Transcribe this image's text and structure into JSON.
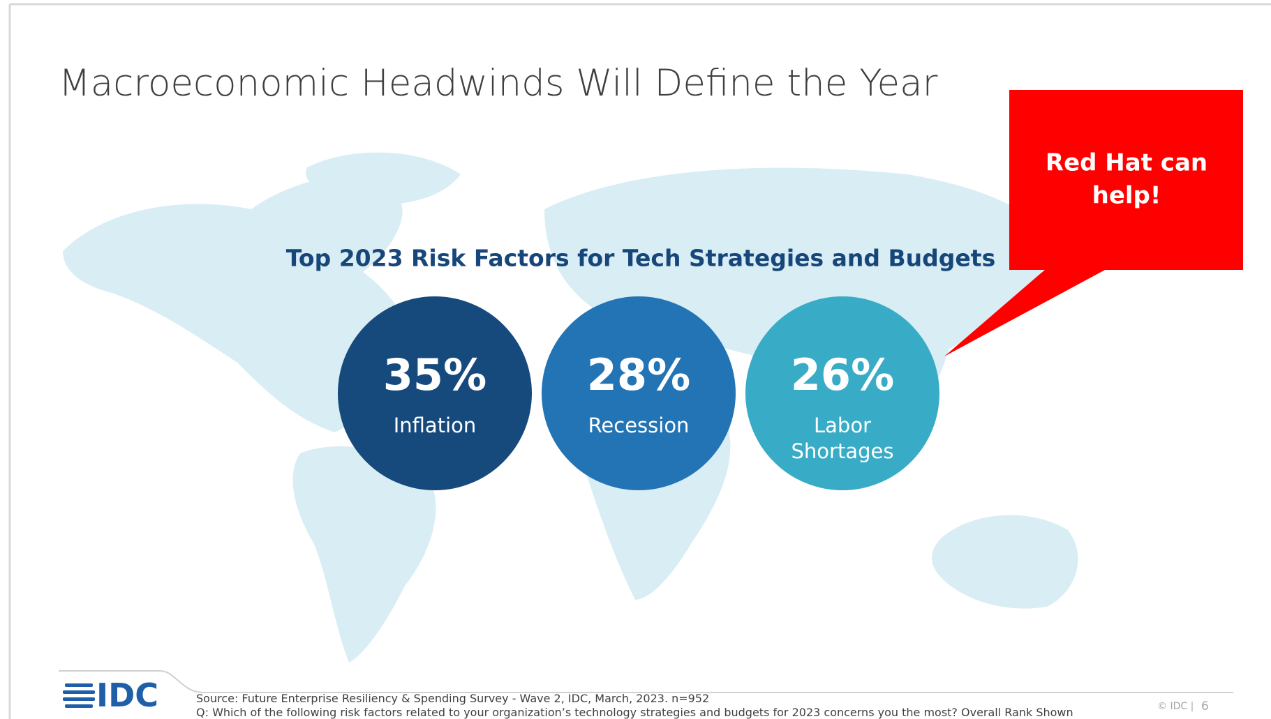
{
  "header": {
    "title": "Macroeconomic Headwinds Will Define the Year"
  },
  "callout": {
    "lines": [
      "Red Hat can",
      "help!"
    ]
  },
  "panel": {
    "subtitle": "Top 2023 Risk Factors for Tech Strategies and Budgets",
    "stats": [
      {
        "value": "35%",
        "label": [
          "Inflation"
        ],
        "color": "#174a7c"
      },
      {
        "value": "28%",
        "label": [
          "Recession"
        ],
        "color": "#2274b5"
      },
      {
        "value": "26%",
        "label": [
          "Labor",
          "Shortages"
        ],
        "color": "#38acc6"
      }
    ]
  },
  "footer": {
    "logo": "IDC",
    "source": "Source: Future Enterprise Resiliency & Spending Survey - Wave 2, IDC, March, 2023. n=952",
    "question": "Q:  Which of the following risk factors related to your organization’s technology strategies and budgets for 2023 concerns you the most? Overall Rank Shown",
    "copyright": "© IDC |",
    "page": "6"
  }
}
